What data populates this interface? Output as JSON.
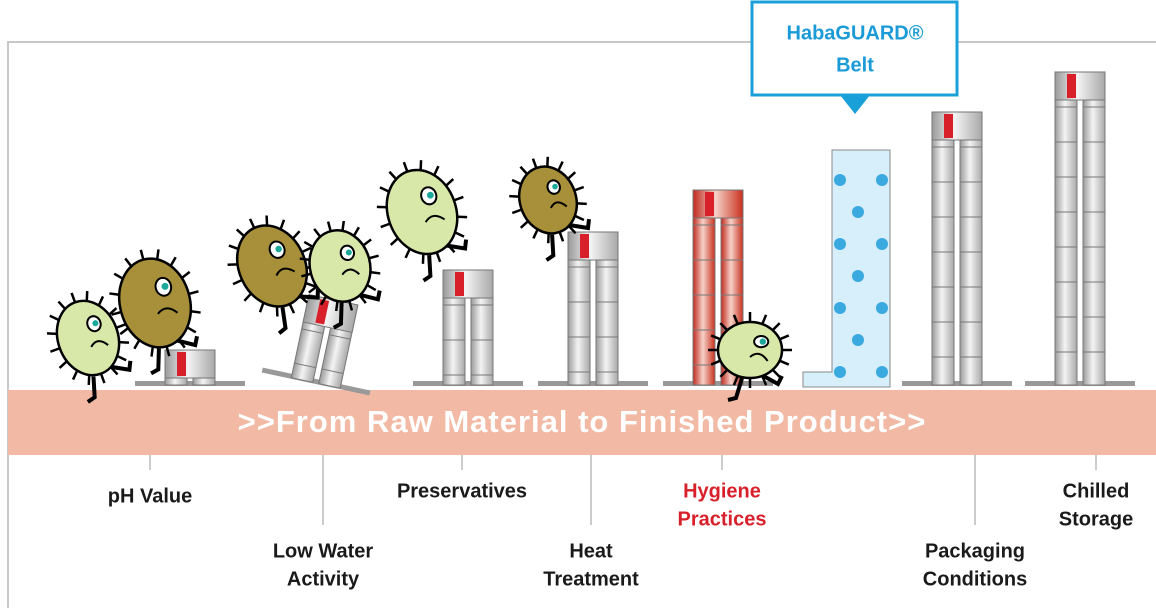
{
  "callout": {
    "lines": [
      "HabaGUARD®",
      "Belt"
    ]
  },
  "band": {
    "text": ">>From Raw Material to Finished Product>>"
  },
  "labels": [
    {
      "lines": [
        "pH Value"
      ]
    },
    {
      "lines": [
        "Low Water",
        "Activity"
      ]
    },
    {
      "lines": [
        "Preservatives"
      ]
    },
    {
      "lines": [
        "Heat",
        "Treatment"
      ]
    },
    {
      "lines": [
        "Hygiene",
        "Practices"
      ]
    },
    {
      "lines": [
        "Packaging",
        "Conditions"
      ]
    },
    {
      "lines": [
        "Chilled",
        "Storage"
      ]
    }
  ]
}
